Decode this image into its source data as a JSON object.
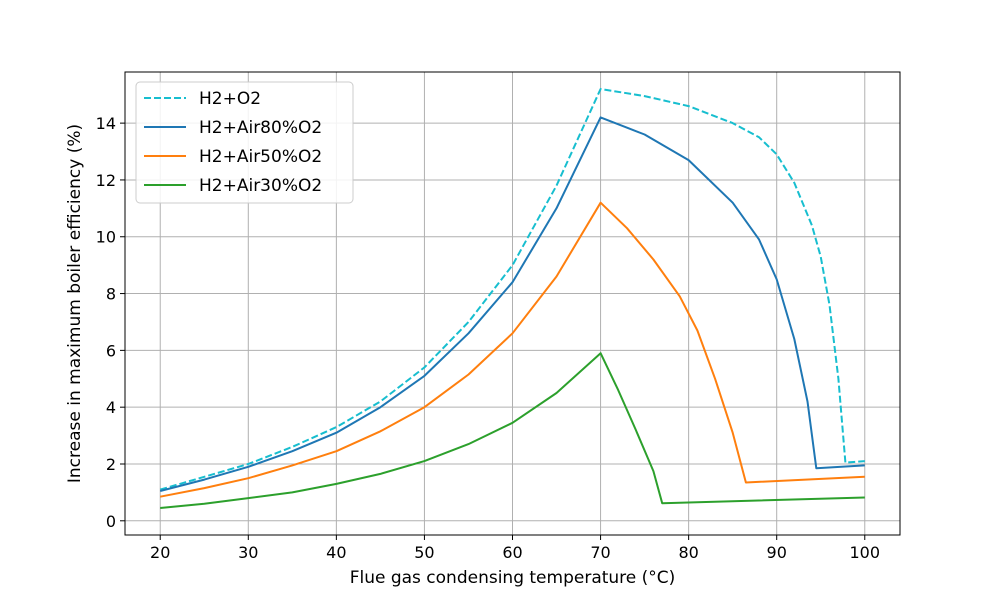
{
  "chart_data": {
    "type": "line",
    "xlabel": "Flue gas condensing temperature (°C)",
    "ylabel": "Increase in maximum boiler efficiency (%)",
    "xlim": [
      16,
      104
    ],
    "ylim": [
      -0.5,
      15.8
    ],
    "xticks": [
      20,
      30,
      40,
      50,
      60,
      70,
      80,
      90,
      100
    ],
    "yticks": [
      0,
      2,
      4,
      6,
      8,
      10,
      12,
      14
    ],
    "grid": true,
    "legend_position": "top-left",
    "series": [
      {
        "name": "H2+O2",
        "color": "#17becf",
        "dash": "dashed",
        "points": [
          [
            20,
            1.1
          ],
          [
            25,
            1.55
          ],
          [
            30,
            2.0
          ],
          [
            35,
            2.6
          ],
          [
            40,
            3.3
          ],
          [
            45,
            4.2
          ],
          [
            50,
            5.4
          ],
          [
            55,
            7.0
          ],
          [
            60,
            9.0
          ],
          [
            65,
            11.8
          ],
          [
            70,
            15.2
          ],
          [
            75,
            14.95
          ],
          [
            80,
            14.6
          ],
          [
            85,
            14.0
          ],
          [
            88,
            13.5
          ],
          [
            90,
            12.9
          ],
          [
            92,
            11.9
          ],
          [
            94,
            10.4
          ],
          [
            95,
            9.3
          ],
          [
            96,
            7.6
          ],
          [
            97,
            5.0
          ],
          [
            97.8,
            2.05
          ],
          [
            100,
            2.1
          ]
        ]
      },
      {
        "name": "H2+Air80%O2",
        "color": "#1f77b4",
        "dash": "solid",
        "points": [
          [
            20,
            1.05
          ],
          [
            25,
            1.45
          ],
          [
            30,
            1.9
          ],
          [
            35,
            2.45
          ],
          [
            40,
            3.1
          ],
          [
            45,
            4.0
          ],
          [
            50,
            5.1
          ],
          [
            55,
            6.6
          ],
          [
            60,
            8.4
          ],
          [
            65,
            11.0
          ],
          [
            70,
            14.2
          ],
          [
            75,
            13.6
          ],
          [
            80,
            12.7
          ],
          [
            85,
            11.2
          ],
          [
            88,
            9.9
          ],
          [
            90,
            8.5
          ],
          [
            92,
            6.4
          ],
          [
            93.5,
            4.2
          ],
          [
            94.5,
            1.85
          ],
          [
            100,
            1.95
          ]
        ]
      },
      {
        "name": "H2+Air50%O2",
        "color": "#ff7f0e",
        "dash": "solid",
        "points": [
          [
            20,
            0.85
          ],
          [
            25,
            1.15
          ],
          [
            30,
            1.5
          ],
          [
            35,
            1.95
          ],
          [
            40,
            2.45
          ],
          [
            45,
            3.15
          ],
          [
            50,
            4.0
          ],
          [
            55,
            5.15
          ],
          [
            60,
            6.6
          ],
          [
            65,
            8.6
          ],
          [
            70,
            11.2
          ],
          [
            73,
            10.3
          ],
          [
            76,
            9.2
          ],
          [
            79,
            7.9
          ],
          [
            81,
            6.7
          ],
          [
            83,
            5.0
          ],
          [
            85,
            3.1
          ],
          [
            86.5,
            1.35
          ],
          [
            100,
            1.55
          ]
        ]
      },
      {
        "name": "H2+Air30%O2",
        "color": "#2ca02c",
        "dash": "solid",
        "points": [
          [
            20,
            0.45
          ],
          [
            25,
            0.6
          ],
          [
            30,
            0.8
          ],
          [
            35,
            1.0
          ],
          [
            40,
            1.3
          ],
          [
            45,
            1.65
          ],
          [
            50,
            2.1
          ],
          [
            55,
            2.7
          ],
          [
            60,
            3.45
          ],
          [
            65,
            4.5
          ],
          [
            70,
            5.9
          ],
          [
            72,
            4.6
          ],
          [
            74,
            3.2
          ],
          [
            76,
            1.75
          ],
          [
            77,
            0.62
          ],
          [
            100,
            0.82
          ]
        ]
      }
    ]
  }
}
